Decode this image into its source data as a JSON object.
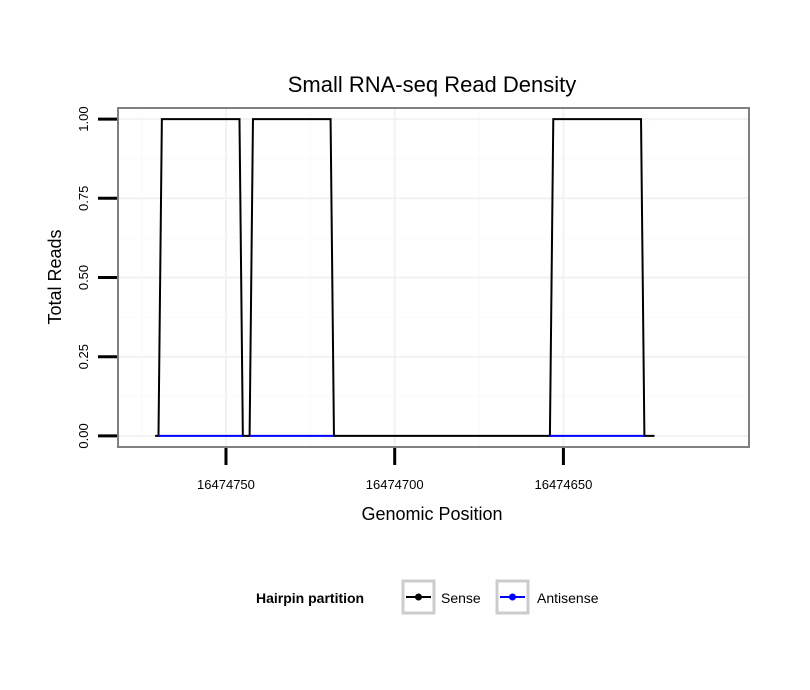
{
  "chart_data": {
    "type": "line",
    "title": "Small RNA-seq Read Density",
    "xlabel": "Genomic Position",
    "ylabel": "Total Reads",
    "x_reversed": true,
    "xlim": [
      16474782,
      16474595
    ],
    "ylim": [
      -0.035,
      1.035
    ],
    "x_ticks": [
      {
        "value": 16474750,
        "label": "16474750"
      },
      {
        "value": 16474700,
        "label": "16474700"
      },
      {
        "value": 16474650,
        "label": "16474650"
      }
    ],
    "y_ticks": [
      {
        "value": 0,
        "label": "0.00"
      },
      {
        "value": 0.25,
        "label": "0.25"
      },
      {
        "value": 0.5,
        "label": "0.50"
      },
      {
        "value": 0.75,
        "label": "0.75"
      },
      {
        "value": 1,
        "label": "1.00"
      }
    ],
    "grid": true,
    "legend": {
      "title": "Hairpin partition",
      "position": "bottom"
    },
    "series": [
      {
        "name": "Sense",
        "color": "#000000",
        "x": [
          16474771,
          16474770,
          16474769,
          16474746,
          16474745,
          16474743,
          16474742,
          16474719,
          16474718,
          16474654,
          16474653,
          16474627,
          16474626,
          16474623
        ],
        "y": [
          0,
          0,
          1,
          1,
          0,
          0,
          1,
          1,
          0,
          0,
          1,
          1,
          0,
          0
        ]
      },
      {
        "name": "Antisense",
        "color": "#0000ff",
        "x": [
          16474770,
          16474745,
          16474743,
          16474718,
          16474654,
          16474626
        ],
        "y": [
          0,
          0,
          0,
          0,
          0,
          0
        ],
        "segments": [
          [
            16474770,
            16474745
          ],
          [
            16474743,
            16474718
          ],
          [
            16474654,
            16474626
          ]
        ]
      }
    ]
  }
}
